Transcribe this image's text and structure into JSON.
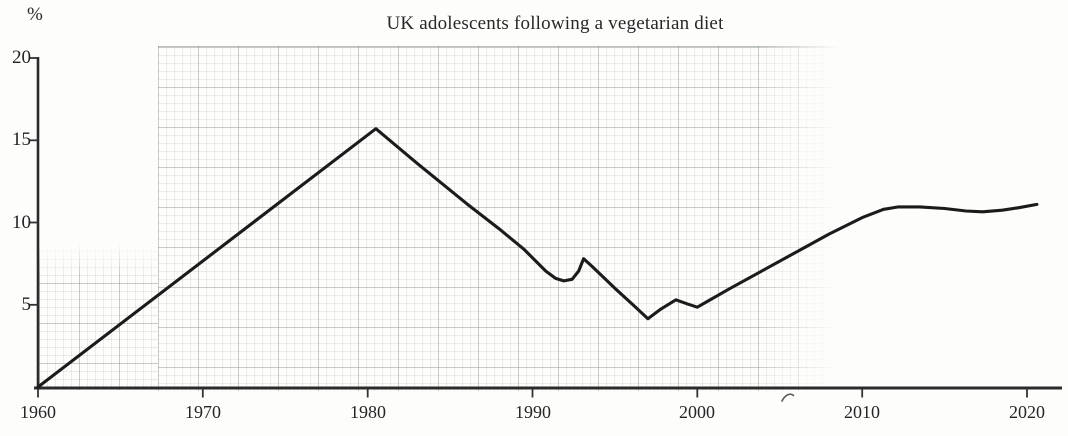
{
  "figure": {
    "title": "UK adolescents following a vegetarian diet",
    "y_unit_label": "%"
  },
  "chart_data": {
    "type": "line",
    "title": "UK adolescents following a vegetarian diet",
    "xlabel": "",
    "ylabel": "%",
    "xlim": [
      1960,
      2020
    ],
    "ylim": [
      0,
      20
    ],
    "x_ticks": [
      1960,
      1970,
      1980,
      1990,
      2000,
      2010,
      2020
    ],
    "y_ticks": [
      5,
      10,
      15,
      20
    ],
    "grid": "faint scanned graph-paper texture over part of plot, no printed gridlines",
    "legend": "none",
    "line_color": "#1b1b1b",
    "axis_color": "#2b2b2b",
    "grid_color": "#8a968a",
    "series": [
      {
        "name": "UK adolescents following a vegetarian diet (%)",
        "points": [
          [
            1960,
            0
          ],
          [
            1980.5,
            15.7
          ],
          [
            1983,
            13.6
          ],
          [
            1986,
            11.15
          ],
          [
            1988,
            9.6
          ],
          [
            1989.5,
            8.35
          ],
          [
            1990.8,
            7.05
          ],
          [
            1991.4,
            6.6
          ],
          [
            1991.9,
            6.45
          ],
          [
            1992.4,
            6.55
          ],
          [
            1992.8,
            7.05
          ],
          [
            1993.1,
            7.8
          ],
          [
            1993.6,
            7.35
          ],
          [
            1995,
            6.0
          ],
          [
            1996.2,
            4.9
          ],
          [
            1997,
            4.15
          ],
          [
            1997.8,
            4.75
          ],
          [
            1998.7,
            5.3
          ],
          [
            1999.4,
            5.05
          ],
          [
            2000,
            4.85
          ],
          [
            2000.6,
            5.2
          ],
          [
            2002,
            6.0
          ],
          [
            2004,
            7.1
          ],
          [
            2006,
            8.2
          ],
          [
            2008,
            9.3
          ],
          [
            2010,
            10.3
          ],
          [
            2011.3,
            10.8
          ],
          [
            2012.2,
            10.95
          ],
          [
            2013.5,
            10.95
          ],
          [
            2015,
            10.85
          ],
          [
            2016.3,
            10.7
          ],
          [
            2017.3,
            10.65
          ],
          [
            2018.5,
            10.75
          ],
          [
            2019.5,
            10.9
          ],
          [
            2020.6,
            11.1
          ]
        ]
      }
    ],
    "notable_values": {
      "start_1960": 0,
      "peak_1980": 15.7,
      "local_min_1992": 6.45,
      "spike_1993": 7.8,
      "min_1997": 4.15,
      "bump_1999": 5.3,
      "dip_2000": 4.85,
      "plateau_2012": 11.0,
      "sag_2017": 10.65,
      "end_2020": 11.1
    }
  }
}
